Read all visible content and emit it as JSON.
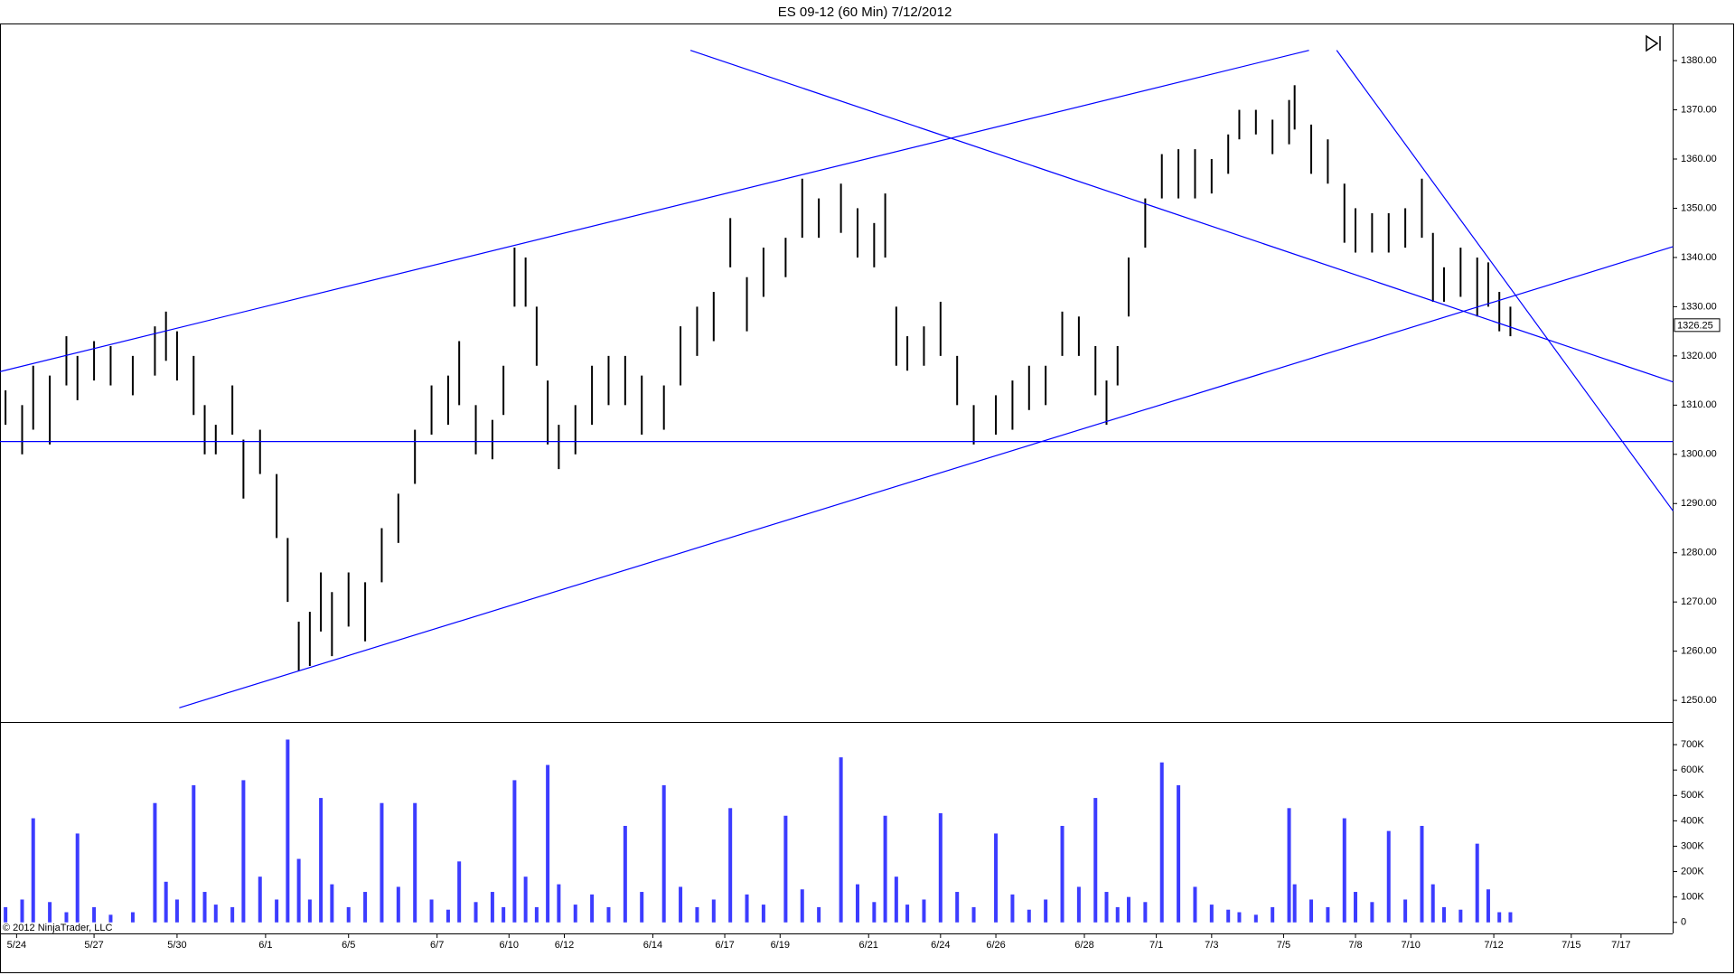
{
  "copyright": "© 2012 NinjaTrader, LLC",
  "chart_data": [
    {
      "type": "range-bar",
      "title": "ES 09-12 (60 Min)  7/12/2012",
      "color": "#000000",
      "x": [
        1,
        4,
        6,
        9,
        12,
        14,
        17,
        20,
        24,
        28,
        30,
        32,
        35,
        37,
        39,
        42,
        44,
        47,
        50,
        52,
        54,
        56,
        58,
        60,
        63,
        66,
        69,
        72,
        75,
        78,
        81,
        83,
        86,
        89,
        91,
        93,
        95,
        97,
        99,
        101,
        104,
        107,
        110,
        113,
        116,
        120,
        123,
        126,
        129,
        132,
        135,
        138,
        142,
        145,
        148,
        152,
        155,
        158,
        160,
        162,
        164,
        167,
        170,
        173,
        176,
        180,
        183,
        186,
        189,
        192,
        195,
        198,
        200,
        202,
        204,
        207,
        210,
        213,
        216,
        219,
        222,
        224,
        227,
        230,
        233,
        234,
        237,
        240,
        243,
        245,
        248,
        251,
        254,
        257,
        259,
        261,
        264,
        267,
        269,
        271,
        273
      ],
      "high": [
        1313,
        1310,
        1318,
        1316,
        1324,
        1320,
        1323,
        1322,
        1320,
        1326,
        1329,
        1325,
        1320,
        1310,
        1306,
        1314,
        1303,
        1305,
        1296,
        1283,
        1266,
        1268,
        1276,
        1272,
        1276,
        1274,
        1285,
        1292,
        1305,
        1314,
        1316,
        1323,
        1310,
        1307,
        1318,
        1342,
        1340,
        1330,
        1315,
        1306,
        1310,
        1318,
        1320,
        1320,
        1316,
        1314,
        1326,
        1330,
        1333,
        1348,
        1336,
        1342,
        1344,
        1356,
        1352,
        1355,
        1350,
        1347,
        1353,
        1330,
        1324,
        1326,
        1331,
        1320,
        1310,
        1312,
        1315,
        1318,
        1318,
        1329,
        1328,
        1322,
        1315,
        1322,
        1340,
        1352,
        1361,
        1362,
        1362,
        1360,
        1365,
        1370,
        1370,
        1368,
        1372,
        1375,
        1367,
        1364,
        1355,
        1350,
        1349,
        1349,
        1350,
        1356,
        1345,
        1338,
        1342,
        1340,
        1339,
        1333,
        1330
      ],
      "low": [
        1306,
        1300,
        1305,
        1302,
        1314,
        1311,
        1315,
        1314,
        1312,
        1316,
        1319,
        1315,
        1308,
        1300,
        1300,
        1304,
        1291,
        1296,
        1283,
        1270,
        1256,
        1257,
        1264,
        1259,
        1265,
        1262,
        1274,
        1282,
        1294,
        1304,
        1306,
        1310,
        1300,
        1299,
        1308,
        1330,
        1330,
        1318,
        1302,
        1297,
        1300,
        1306,
        1310,
        1310,
        1304,
        1305,
        1314,
        1320,
        1323,
        1338,
        1325,
        1332,
        1336,
        1344,
        1344,
        1345,
        1340,
        1338,
        1340,
        1318,
        1317,
        1318,
        1320,
        1310,
        1302,
        1304,
        1305,
        1309,
        1310,
        1320,
        1320,
        1312,
        1306,
        1314,
        1328,
        1342,
        1352,
        1352,
        1352,
        1353,
        1357,
        1364,
        1365,
        1361,
        1363,
        1366,
        1357,
        1355,
        1343,
        1341,
        1341,
        1341,
        1342,
        1344,
        1331,
        1331,
        1332,
        1328,
        1330,
        1325,
        1324
      ],
      "last_price": 1326.25,
      "trendlines": [
        {
          "x": [
            0,
            236.6
          ],
          "y": [
            1316.8,
            1382.1
          ]
        },
        {
          "x": [
            124.8,
            302.4
          ],
          "y": [
            1382.1,
            1314.7
          ]
        },
        {
          "x": [
            241.6,
            302.4
          ],
          "y": [
            1382.1,
            1288.5
          ]
        },
        {
          "x": [
            32.4,
            302.4
          ],
          "y": [
            1248.5,
            1342.2
          ]
        },
        {
          "x": [
            0,
            302.4
          ],
          "y": [
            1302.6,
            1302.6
          ]
        }
      ],
      "line_color": "#0000ff",
      "xlim": [
        0,
        302
      ],
      "ylim": [
        1248,
        1384
      ],
      "yticks": [
        {
          "value": 1250,
          "label": "1250.00"
        },
        {
          "value": 1260,
          "label": "1260.00"
        },
        {
          "value": 1270,
          "label": "1270.00"
        },
        {
          "value": 1280,
          "label": "1280.00"
        },
        {
          "value": 1290,
          "label": "1290.00"
        },
        {
          "value": 1300,
          "label": "1300.00"
        },
        {
          "value": 1310,
          "label": "1310.00"
        },
        {
          "value": 1320,
          "label": "1320.00"
        },
        {
          "value": 1330,
          "label": "1330.00"
        },
        {
          "value": 1340,
          "label": "1340.00"
        },
        {
          "value": 1350,
          "label": "1350.00"
        },
        {
          "value": 1360,
          "label": "1360.00"
        },
        {
          "value": 1370,
          "label": "1370.00"
        },
        {
          "value": 1380,
          "label": "1380.00"
        }
      ],
      "xticks": [
        {
          "value": 3,
          "label": "5/24"
        },
        {
          "value": 17,
          "label": "5/27"
        },
        {
          "value": 32,
          "label": "5/30"
        },
        {
          "value": 48,
          "label": "6/1"
        },
        {
          "value": 63,
          "label": "6/5"
        },
        {
          "value": 79,
          "label": "6/7"
        },
        {
          "value": 92,
          "label": "6/10"
        },
        {
          "value": 102,
          "label": "6/12"
        },
        {
          "value": 118,
          "label": "6/14"
        },
        {
          "value": 131,
          "label": "6/17"
        },
        {
          "value": 141,
          "label": "6/19"
        },
        {
          "value": 157,
          "label": "6/21"
        },
        {
          "value": 170,
          "label": "6/24"
        },
        {
          "value": 180,
          "label": "6/26"
        },
        {
          "value": 196,
          "label": "6/28"
        },
        {
          "value": 209,
          "label": "7/1"
        },
        {
          "value": 219,
          "label": "7/3"
        },
        {
          "value": 232,
          "label": "7/5"
        },
        {
          "value": 245,
          "label": "7/8"
        },
        {
          "value": 255,
          "label": "7/10"
        },
        {
          "value": 270,
          "label": "7/12"
        },
        {
          "value": 284,
          "label": "7/15"
        },
        {
          "value": 293,
          "label": "7/17"
        }
      ]
    },
    {
      "type": "bar",
      "color": "#3c3cff",
      "x": [
        1,
        4,
        6,
        9,
        12,
        14,
        17,
        20,
        24,
        28,
        30,
        32,
        35,
        37,
        39,
        42,
        44,
        47,
        50,
        52,
        54,
        56,
        58,
        60,
        63,
        66,
        69,
        72,
        75,
        78,
        81,
        83,
        86,
        89,
        91,
        93,
        95,
        97,
        99,
        101,
        104,
        107,
        110,
        113,
        116,
        120,
        123,
        126,
        129,
        132,
        135,
        138,
        142,
        145,
        148,
        152,
        155,
        158,
        160,
        162,
        164,
        167,
        170,
        173,
        176,
        180,
        183,
        186,
        189,
        192,
        195,
        198,
        200,
        202,
        204,
        207,
        210,
        213,
        216,
        219,
        222,
        224,
        227,
        230,
        233,
        234,
        237,
        240,
        243,
        245,
        248,
        251,
        254,
        257,
        259,
        261,
        264,
        267,
        269,
        271,
        273
      ],
      "values": [
        60000,
        90000,
        410000,
        80000,
        40000,
        350000,
        60000,
        30000,
        40000,
        470000,
        160000,
        90000,
        540000,
        120000,
        70000,
        60000,
        560000,
        180000,
        90000,
        720000,
        250000,
        90000,
        490000,
        150000,
        60000,
        120000,
        470000,
        140000,
        470000,
        90000,
        50000,
        240000,
        80000,
        120000,
        60000,
        560000,
        180000,
        60000,
        620000,
        150000,
        70000,
        110000,
        60000,
        380000,
        120000,
        540000,
        140000,
        60000,
        90000,
        450000,
        110000,
        70000,
        420000,
        130000,
        60000,
        650000,
        150000,
        80000,
        420000,
        180000,
        70000,
        90000,
        430000,
        120000,
        60000,
        350000,
        110000,
        50000,
        90000,
        380000,
        140000,
        490000,
        120000,
        60000,
        100000,
        80000,
        630000,
        540000,
        140000,
        70000,
        50000,
        40000,
        30000,
        60000,
        450000,
        150000,
        90000,
        60000,
        410000,
        120000,
        80000,
        360000,
        90000,
        380000,
        150000,
        60000,
        50000,
        310000,
        130000,
        40000,
        40000
      ],
      "xlim": [
        0,
        302
      ],
      "ylim": [
        -40000,
        775000
      ],
      "yticks": [
        0,
        {
          "value": 100000,
          "label": "100K"
        },
        {
          "value": 200000,
          "label": "200K"
        },
        {
          "value": 300000,
          "label": "300K"
        },
        {
          "value": 400000,
          "label": "400K"
        },
        {
          "value": 500000,
          "label": "500K"
        },
        {
          "value": 600000,
          "label": "600K"
        },
        {
          "value": 700000,
          "label": "700K"
        }
      ]
    }
  ]
}
